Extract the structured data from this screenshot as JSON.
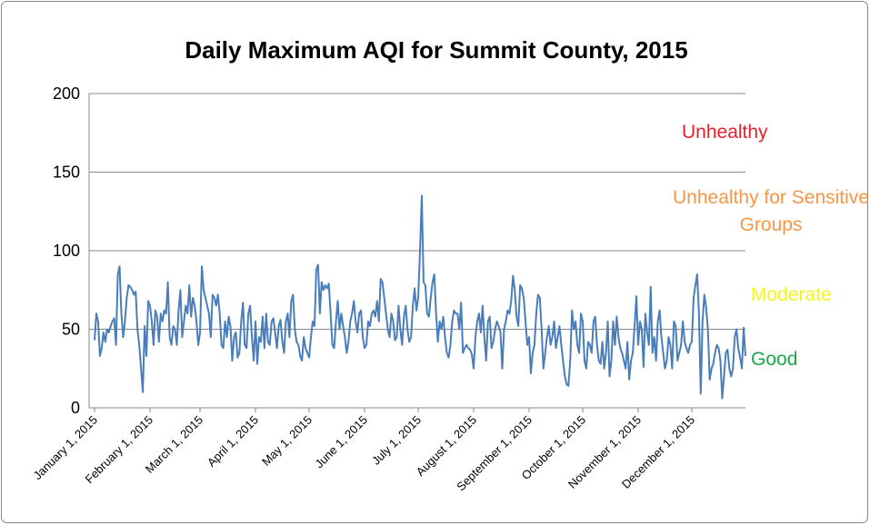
{
  "chart_data": {
    "type": "line",
    "title": "Daily Maximum AQI for Summit County, 2015",
    "color": "#4a7ebb",
    "grid": true,
    "ylim": [
      0,
      200
    ],
    "yticks": [
      0,
      50,
      100,
      150,
      200
    ],
    "xlim": [
      "2015-01-01",
      "2015-12-31"
    ],
    "xticks": [
      {
        "value": "2015-01-01",
        "label": "January 1, 2015"
      },
      {
        "value": "2015-02-01",
        "label": "February 1, 2015"
      },
      {
        "value": "2015-03-01",
        "label": "March 1, 2015"
      },
      {
        "value": "2015-04-01",
        "label": "April 1, 2015"
      },
      {
        "value": "2015-05-01",
        "label": "May 1, 2015"
      },
      {
        "value": "2015-06-01",
        "label": "June 1, 2015"
      },
      {
        "value": "2015-07-01",
        "label": "July 1, 2015"
      },
      {
        "value": "2015-08-01",
        "label": "August 1, 2015"
      },
      {
        "value": "2015-09-01",
        "label": "September 1, 2015"
      },
      {
        "value": "2015-10-01",
        "label": "October 1, 2015"
      },
      {
        "value": "2015-11-01",
        "label": "November 1, 2015"
      },
      {
        "value": "2015-12-01",
        "label": "December 1, 2015"
      }
    ],
    "annotations": [
      {
        "text": "Unhealthy",
        "color": "#e8202a"
      },
      {
        "text": "Unhealthy for Sensitive Groups",
        "color": "#f79646"
      },
      {
        "text": "Moderate",
        "color": "#f5f51e"
      },
      {
        "text": "Good",
        "color": "#1aa64a"
      }
    ],
    "x": [
      "2015-01-01",
      "2015-01-02",
      "2015-01-03",
      "2015-01-04",
      "2015-01-05",
      "2015-01-06",
      "2015-01-07",
      "2015-01-08",
      "2015-01-09",
      "2015-01-10",
      "2015-01-11",
      "2015-01-12",
      "2015-01-13",
      "2015-01-14",
      "2015-01-15",
      "2015-01-16",
      "2015-01-17",
      "2015-01-18",
      "2015-01-19",
      "2015-01-20",
      "2015-01-21",
      "2015-01-22",
      "2015-01-23",
      "2015-01-24",
      "2015-01-25",
      "2015-01-26",
      "2015-01-27",
      "2015-01-28",
      "2015-01-29",
      "2015-01-30",
      "2015-01-31",
      "2015-02-01",
      "2015-02-02",
      "2015-02-03",
      "2015-02-04",
      "2015-02-05",
      "2015-02-06",
      "2015-02-07",
      "2015-02-08",
      "2015-02-09",
      "2015-02-10",
      "2015-02-11",
      "2015-02-12",
      "2015-02-13",
      "2015-02-14",
      "2015-02-15",
      "2015-02-16",
      "2015-02-17",
      "2015-02-18",
      "2015-02-19",
      "2015-02-20",
      "2015-02-21",
      "2015-02-22",
      "2015-02-23",
      "2015-02-24",
      "2015-02-25",
      "2015-02-26",
      "2015-02-27",
      "2015-02-28",
      "2015-03-01",
      "2015-03-02",
      "2015-03-03",
      "2015-03-04",
      "2015-03-05",
      "2015-03-06",
      "2015-03-07",
      "2015-03-08",
      "2015-03-09",
      "2015-03-10",
      "2015-03-11",
      "2015-03-12",
      "2015-03-13",
      "2015-03-14",
      "2015-03-15",
      "2015-03-16",
      "2015-03-17",
      "2015-03-18",
      "2015-03-19",
      "2015-03-20",
      "2015-03-21",
      "2015-03-22",
      "2015-03-23",
      "2015-03-24",
      "2015-03-25",
      "2015-03-26",
      "2015-03-27",
      "2015-03-28",
      "2015-03-29",
      "2015-03-30",
      "2015-03-31",
      "2015-04-01",
      "2015-04-02",
      "2015-04-03",
      "2015-04-04",
      "2015-04-05",
      "2015-04-06",
      "2015-04-07",
      "2015-04-08",
      "2015-04-09",
      "2015-04-10",
      "2015-04-11",
      "2015-04-12",
      "2015-04-13",
      "2015-04-14",
      "2015-04-15",
      "2015-04-16",
      "2015-04-17",
      "2015-04-18",
      "2015-04-19",
      "2015-04-20",
      "2015-04-21",
      "2015-04-22",
      "2015-04-23",
      "2015-04-24",
      "2015-04-25",
      "2015-04-26",
      "2015-04-27",
      "2015-04-28",
      "2015-04-29",
      "2015-04-30",
      "2015-05-01",
      "2015-05-02",
      "2015-05-03",
      "2015-05-04",
      "2015-05-05",
      "2015-05-06",
      "2015-05-07",
      "2015-05-08",
      "2015-05-09",
      "2015-05-10",
      "2015-05-11",
      "2015-05-12",
      "2015-05-13",
      "2015-05-14",
      "2015-05-15",
      "2015-05-16",
      "2015-05-17",
      "2015-05-18",
      "2015-05-19",
      "2015-05-20",
      "2015-05-21",
      "2015-05-22",
      "2015-05-23",
      "2015-05-24",
      "2015-05-25",
      "2015-05-26",
      "2015-05-27",
      "2015-05-28",
      "2015-05-29",
      "2015-05-30",
      "2015-05-31",
      "2015-06-01",
      "2015-06-02",
      "2015-06-03",
      "2015-06-04",
      "2015-06-05",
      "2015-06-06",
      "2015-06-07",
      "2015-06-08",
      "2015-06-09",
      "2015-06-10",
      "2015-06-11",
      "2015-06-12",
      "2015-06-13",
      "2015-06-14",
      "2015-06-15",
      "2015-06-16",
      "2015-06-17",
      "2015-06-18",
      "2015-06-19",
      "2015-06-20",
      "2015-06-21",
      "2015-06-22",
      "2015-06-23",
      "2015-06-24",
      "2015-06-25",
      "2015-06-26",
      "2015-06-27",
      "2015-06-28",
      "2015-06-29",
      "2015-06-30",
      "2015-07-01",
      "2015-07-02",
      "2015-07-03",
      "2015-07-04",
      "2015-07-05",
      "2015-07-06",
      "2015-07-07",
      "2015-07-08",
      "2015-07-09",
      "2015-07-10",
      "2015-07-11",
      "2015-07-12",
      "2015-07-13",
      "2015-07-14",
      "2015-07-15",
      "2015-07-16",
      "2015-07-17",
      "2015-07-18",
      "2015-07-19",
      "2015-07-20",
      "2015-07-21",
      "2015-07-22",
      "2015-07-23",
      "2015-07-24",
      "2015-07-25",
      "2015-07-26",
      "2015-07-27",
      "2015-07-28",
      "2015-07-29",
      "2015-07-30",
      "2015-07-31",
      "2015-08-01",
      "2015-08-02",
      "2015-08-03",
      "2015-08-04",
      "2015-08-05",
      "2015-08-06",
      "2015-08-07",
      "2015-08-08",
      "2015-08-09",
      "2015-08-10",
      "2015-08-11",
      "2015-08-12",
      "2015-08-13",
      "2015-08-14",
      "2015-08-15",
      "2015-08-16",
      "2015-08-17",
      "2015-08-18",
      "2015-08-19",
      "2015-08-20",
      "2015-08-21",
      "2015-08-22",
      "2015-08-23",
      "2015-08-24",
      "2015-08-25",
      "2015-08-26",
      "2015-08-27",
      "2015-08-28",
      "2015-08-29",
      "2015-08-30",
      "2015-08-31",
      "2015-09-01",
      "2015-09-02",
      "2015-09-03",
      "2015-09-04",
      "2015-09-05",
      "2015-09-06",
      "2015-09-07",
      "2015-09-08",
      "2015-09-09",
      "2015-09-10",
      "2015-09-11",
      "2015-09-12",
      "2015-09-13",
      "2015-09-14",
      "2015-09-15",
      "2015-09-16",
      "2015-09-17",
      "2015-09-18",
      "2015-09-19",
      "2015-09-20",
      "2015-09-21",
      "2015-09-22",
      "2015-09-23",
      "2015-09-24",
      "2015-09-25",
      "2015-09-26",
      "2015-09-27",
      "2015-09-28",
      "2015-09-29",
      "2015-09-30",
      "2015-10-01",
      "2015-10-02",
      "2015-10-03",
      "2015-10-04",
      "2015-10-05",
      "2015-10-06",
      "2015-10-07",
      "2015-10-08",
      "2015-10-09",
      "2015-10-10",
      "2015-10-11",
      "2015-10-12",
      "2015-10-13",
      "2015-10-14",
      "2015-10-15",
      "2015-10-16",
      "2015-10-17",
      "2015-10-18",
      "2015-10-19",
      "2015-10-20",
      "2015-10-21",
      "2015-10-22",
      "2015-10-23",
      "2015-10-24",
      "2015-10-25",
      "2015-10-26",
      "2015-10-27",
      "2015-10-28",
      "2015-10-29",
      "2015-10-30",
      "2015-10-31",
      "2015-11-01",
      "2015-11-02",
      "2015-11-03",
      "2015-11-04",
      "2015-11-05",
      "2015-11-06",
      "2015-11-07",
      "2015-11-08",
      "2015-11-09",
      "2015-11-10",
      "2015-11-11",
      "2015-11-12",
      "2015-11-13",
      "2015-11-14",
      "2015-11-15",
      "2015-11-16",
      "2015-11-17",
      "2015-11-18",
      "2015-11-19",
      "2015-11-20",
      "2015-11-21",
      "2015-11-22",
      "2015-11-23",
      "2015-11-24",
      "2015-11-25",
      "2015-11-26",
      "2015-11-27",
      "2015-11-28",
      "2015-11-29",
      "2015-11-30",
      "2015-12-01",
      "2015-12-02",
      "2015-12-03",
      "2015-12-04",
      "2015-12-05",
      "2015-12-06",
      "2015-12-07",
      "2015-12-08",
      "2015-12-09",
      "2015-12-10",
      "2015-12-11",
      "2015-12-12",
      "2015-12-13",
      "2015-12-14",
      "2015-12-15",
      "2015-12-16",
      "2015-12-17",
      "2015-12-18",
      "2015-12-19",
      "2015-12-20",
      "2015-12-21",
      "2015-12-22",
      "2015-12-23",
      "2015-12-24",
      "2015-12-25",
      "2015-12-26",
      "2015-12-27",
      "2015-12-28",
      "2015-12-29",
      "2015-12-30",
      "2015-12-31"
    ],
    "values": [
      43,
      60,
      55,
      33,
      38,
      48,
      42,
      50,
      48,
      52,
      55,
      57,
      40,
      85,
      90,
      60,
      45,
      55,
      70,
      78,
      77,
      75,
      72,
      74,
      50,
      40,
      25,
      10,
      52,
      33,
      68,
      65,
      55,
      40,
      62,
      58,
      42,
      60,
      55,
      62,
      60,
      80,
      45,
      40,
      52,
      50,
      40,
      62,
      75,
      45,
      55,
      65,
      60,
      78,
      58,
      70,
      65,
      55,
      40,
      48,
      90,
      75,
      70,
      65,
      60,
      45,
      72,
      70,
      65,
      72,
      60,
      40,
      38,
      55,
      45,
      58,
      52,
      30,
      45,
      48,
      32,
      35,
      55,
      67,
      40,
      38,
      60,
      65,
      45,
      30,
      55,
      28,
      45,
      42,
      58,
      38,
      60,
      42,
      40,
      55,
      57,
      48,
      38,
      52,
      56,
      42,
      35,
      55,
      60,
      45,
      68,
      72,
      50,
      42,
      40,
      33,
      30,
      45,
      38,
      35,
      32,
      45,
      55,
      52,
      88,
      91,
      60,
      80,
      75,
      78,
      76,
      79,
      60,
      40,
      38,
      55,
      68,
      50,
      60,
      52,
      45,
      35,
      42,
      55,
      60,
      68,
      55,
      48,
      60,
      62,
      45,
      38,
      40,
      55,
      52,
      60,
      62,
      58,
      68,
      55,
      82,
      80,
      70,
      60,
      50,
      45,
      60,
      55,
      43,
      45,
      65,
      50,
      40,
      58,
      65,
      50,
      42,
      45,
      65,
      76,
      62,
      70,
      100,
      135,
      80,
      78,
      60,
      58,
      70,
      80,
      85,
      60,
      42,
      55,
      50,
      58,
      45,
      35,
      32,
      40,
      55,
      62,
      60,
      60,
      50,
      67,
      35,
      38,
      40,
      38,
      37,
      34,
      25,
      45,
      55,
      60,
      48,
      65,
      45,
      30,
      55,
      58,
      38,
      42,
      50,
      55,
      52,
      48,
      25,
      50,
      55,
      62,
      60,
      68,
      84,
      75,
      58,
      52,
      78,
      76,
      70,
      55,
      40,
      45,
      22,
      35,
      40,
      60,
      72,
      70,
      50,
      25,
      35,
      45,
      52,
      40,
      45,
      55,
      38,
      45,
      52,
      40,
      30,
      20,
      15,
      14,
      30,
      62,
      50,
      55,
      40,
      35,
      60,
      55,
      30,
      25,
      42,
      40,
      35,
      55,
      58,
      40,
      30,
      28,
      42,
      25,
      35,
      55,
      20,
      30,
      55,
      40,
      58,
      45,
      38,
      35,
      30,
      25,
      42,
      18,
      30,
      35,
      52,
      71,
      40,
      55,
      50,
      26,
      60,
      48,
      40,
      77,
      35,
      45,
      30,
      55,
      62,
      45,
      35,
      25,
      30,
      45,
      40,
      25,
      55,
      52,
      30,
      35,
      40,
      55,
      42,
      38,
      35,
      40,
      42,
      70,
      78,
      85,
      60,
      9,
      55,
      72,
      64,
      50,
      18,
      25,
      28,
      35,
      40,
      38,
      30,
      6,
      20,
      35,
      37,
      25,
      20,
      25,
      45,
      50,
      38,
      32,
      25,
      51,
      33
    ]
  }
}
